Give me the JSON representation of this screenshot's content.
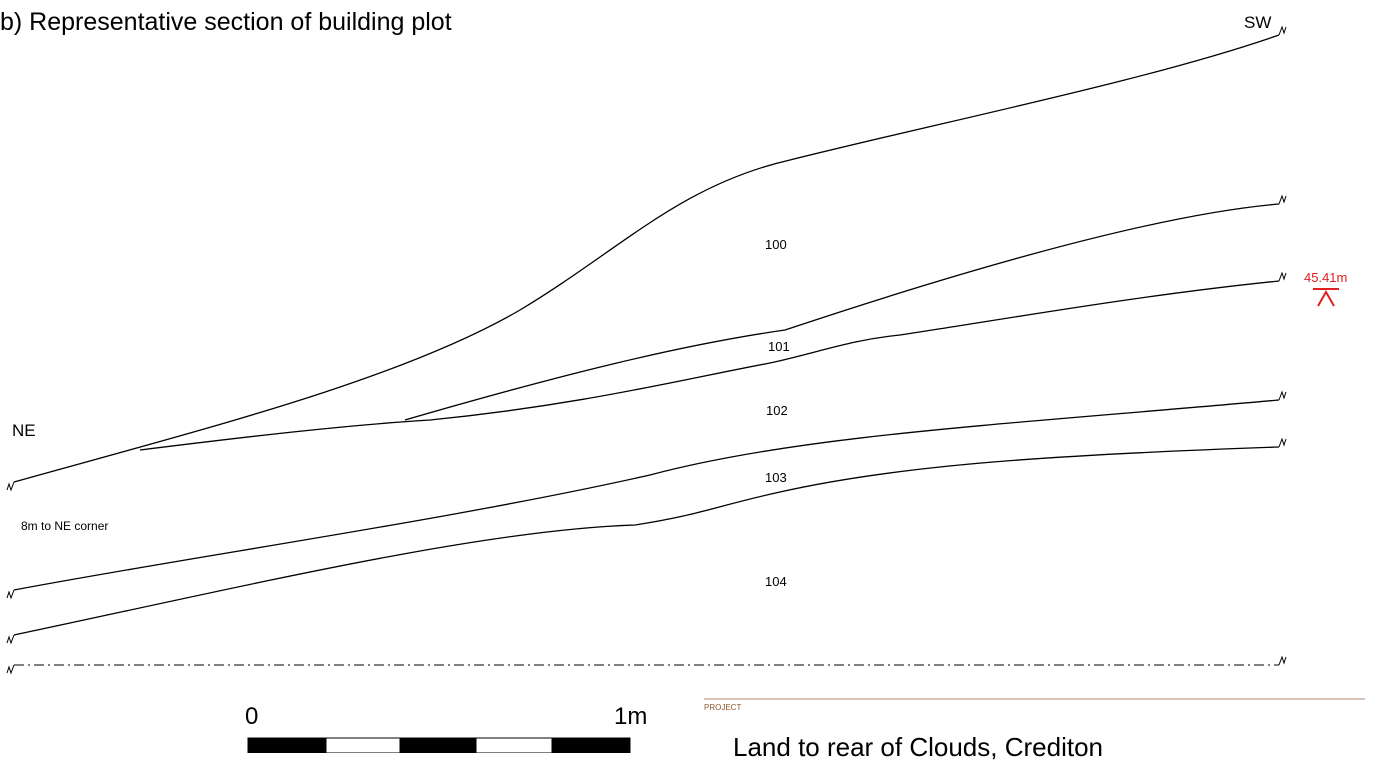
{
  "title": "b) Representative section of building plot",
  "orientation": {
    "left_label": "NE",
    "right_label": "SW"
  },
  "note": "8m to NE corner",
  "layers": [
    "100",
    "101",
    "102",
    "103",
    "104"
  ],
  "elevation": {
    "label": "45.41m",
    "color": "#e02020"
  },
  "scale_bar": {
    "start_label": "0",
    "end_label": "1m"
  },
  "project": {
    "label": "PROJECT",
    "title": "Land to rear of Clouds, Crediton",
    "rule_color": "#b08a70"
  }
}
